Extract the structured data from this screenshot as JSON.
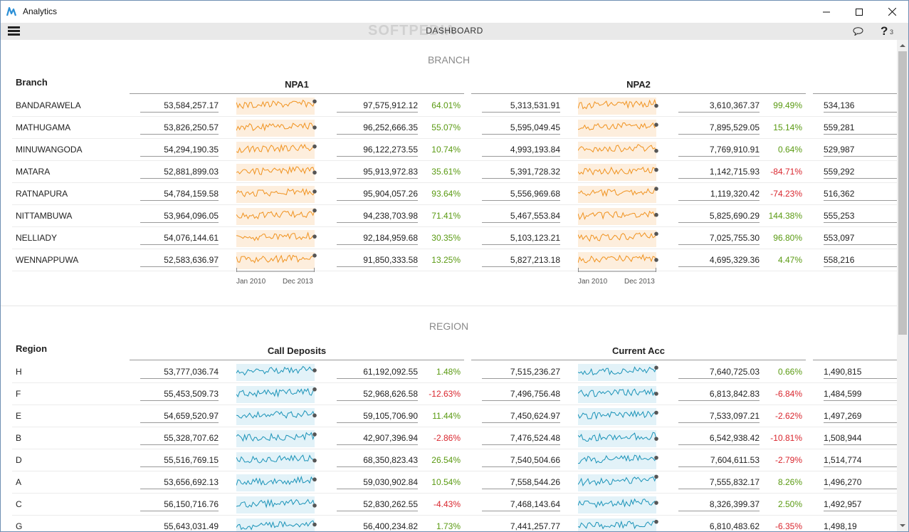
{
  "window": {
    "title": "Analytics"
  },
  "toolbar": {
    "title": "DASHBOARD",
    "help_count": "3",
    "watermark": "SOFTPEDIA"
  },
  "colors": {
    "orange": "#f0921e",
    "orange_fill": "#fdeedd",
    "blue": "#1a93b8",
    "blue_fill": "#e2f2f8",
    "positive": "#5a9a12",
    "negative": "#d9262e"
  },
  "branch": {
    "section_title": "BRANCH",
    "dimension_title": "Branch",
    "measures": [
      "NPA1",
      "NPA2"
    ],
    "axis_start": "Jan 2010",
    "axis_end": "Dec 2013",
    "rows": [
      {
        "label": "BANDARAWELA",
        "m1": {
          "value": "53,584,257.17",
          "compare": "97,575,912.12",
          "pct": "64.01%"
        },
        "m2": {
          "value": "5,313,531.91",
          "compare": "3,610,367.37",
          "pct": "99.49%"
        },
        "m3": {
          "value": "534,136"
        }
      },
      {
        "label": "MATHUGAMA",
        "m1": {
          "value": "53,826,250.57",
          "compare": "96,252,666.35",
          "pct": "55.07%"
        },
        "m2": {
          "value": "5,595,049.45",
          "compare": "7,895,529.05",
          "pct": "15.14%"
        },
        "m3": {
          "value": "559,281"
        }
      },
      {
        "label": "MINUWANGODA",
        "m1": {
          "value": "54,294,190.35",
          "compare": "96,122,273.55",
          "pct": "10.74%"
        },
        "m2": {
          "value": "4,993,193.84",
          "compare": "7,769,910.91",
          "pct": "0.64%"
        },
        "m3": {
          "value": "529,987"
        }
      },
      {
        "label": "MATARA",
        "m1": {
          "value": "52,881,899.03",
          "compare": "95,913,972.83",
          "pct": "35.61%"
        },
        "m2": {
          "value": "5,391,728.32",
          "compare": "1,142,715.93",
          "pct": "-84.71%"
        },
        "m3": {
          "value": "559,292"
        }
      },
      {
        "label": "RATNAPURA",
        "m1": {
          "value": "54,784,159.58",
          "compare": "95,904,057.26",
          "pct": "93.64%"
        },
        "m2": {
          "value": "5,556,969.68",
          "compare": "1,119,320.42",
          "pct": "-74.23%"
        },
        "m3": {
          "value": "516,362"
        }
      },
      {
        "label": "NITTAMBUWA",
        "m1": {
          "value": "53,964,096.05",
          "compare": "94,238,703.98",
          "pct": "71.41%"
        },
        "m2": {
          "value": "5,467,553.84",
          "compare": "5,825,690.29",
          "pct": "144.38%"
        },
        "m3": {
          "value": "555,253"
        }
      },
      {
        "label": "NELLIADY",
        "m1": {
          "value": "54,076,144.61",
          "compare": "92,184,959.68",
          "pct": "30.35%"
        },
        "m2": {
          "value": "5,103,123.21",
          "compare": "7,025,755.30",
          "pct": "96.80%"
        },
        "m3": {
          "value": "553,097"
        }
      },
      {
        "label": "WENNAPPUWA",
        "m1": {
          "value": "52,583,636.97",
          "compare": "91,850,333.58",
          "pct": "13.25%"
        },
        "m2": {
          "value": "5,827,213.18",
          "compare": "4,695,329.36",
          "pct": "4.47%"
        },
        "m3": {
          "value": "558,216"
        }
      }
    ]
  },
  "region": {
    "section_title": "REGION",
    "dimension_title": "Region",
    "measures": [
      "Call Deposits",
      "Current Acc"
    ],
    "rows": [
      {
        "label": "H",
        "m1": {
          "value": "53,777,036.74",
          "compare": "61,192,092.55",
          "pct": "1.48%"
        },
        "m2": {
          "value": "7,515,236.27",
          "compare": "7,640,725.03",
          "pct": "0.66%"
        },
        "m3": {
          "value": "1,490,815"
        }
      },
      {
        "label": "F",
        "m1": {
          "value": "55,453,509.73",
          "compare": "52,968,626.58",
          "pct": "-12.63%"
        },
        "m2": {
          "value": "7,496,756.48",
          "compare": "6,813,842.83",
          "pct": "-6.84%"
        },
        "m3": {
          "value": "1,484,599"
        }
      },
      {
        "label": "E",
        "m1": {
          "value": "54,659,520.97",
          "compare": "59,105,706.90",
          "pct": "11.44%"
        },
        "m2": {
          "value": "7,450,624.97",
          "compare": "7,533,097.21",
          "pct": "-2.62%"
        },
        "m3": {
          "value": "1,497,269"
        }
      },
      {
        "label": "B",
        "m1": {
          "value": "55,328,707.62",
          "compare": "42,907,396.94",
          "pct": "-2.86%"
        },
        "m2": {
          "value": "7,476,524.48",
          "compare": "6,542,938.42",
          "pct": "-10.81%"
        },
        "m3": {
          "value": "1,508,944"
        }
      },
      {
        "label": "D",
        "m1": {
          "value": "55,516,769.15",
          "compare": "68,350,823.43",
          "pct": "26.54%"
        },
        "m2": {
          "value": "7,540,504.66",
          "compare": "7,604,611.53",
          "pct": "-2.79%"
        },
        "m3": {
          "value": "1,514,774"
        }
      },
      {
        "label": "A",
        "m1": {
          "value": "53,656,692.13",
          "compare": "59,030,902.84",
          "pct": "10.54%"
        },
        "m2": {
          "value": "7,558,544.26",
          "compare": "7,555,832.17",
          "pct": "8.26%"
        },
        "m3": {
          "value": "1,496,270"
        }
      },
      {
        "label": "C",
        "m1": {
          "value": "56,150,716.76",
          "compare": "52,830,262.55",
          "pct": "-4.43%"
        },
        "m2": {
          "value": "7,468,143.64",
          "compare": "8,326,399.37",
          "pct": "2.50%"
        },
        "m3": {
          "value": "1,492,957"
        }
      },
      {
        "label": "G",
        "m1": {
          "value": "55,643,031.49",
          "compare": "56,400,234.82",
          "pct": "1.73%"
        },
        "m2": {
          "value": "7,441,257.77",
          "compare": "6,810,483.62",
          "pct": "-6.35%"
        },
        "m3": {
          "value": "1,498,19"
        }
      }
    ]
  }
}
